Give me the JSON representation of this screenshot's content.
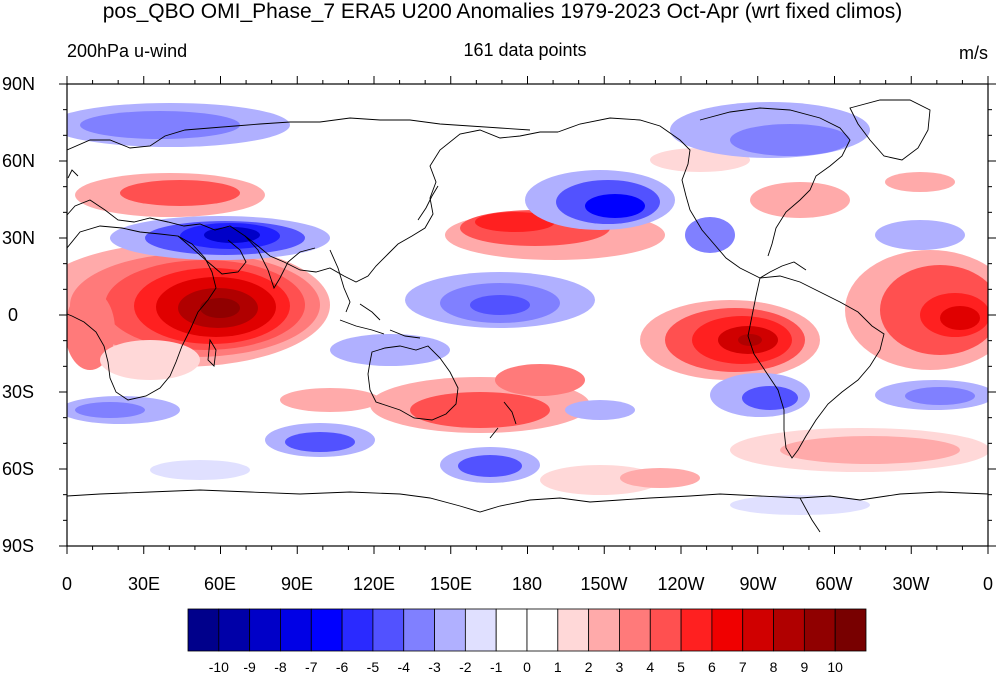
{
  "title": "pos_QBO OMI_Phase_7 ERA5 U200 Anomalies 1979-2023 Oct-Apr (wrt fixed climos)",
  "left_string": "200hPa u-wind",
  "center_string": "161 data points",
  "right_string": "m/s",
  "y_ticks": [
    "90N",
    "60N",
    "30N",
    "0",
    "30S",
    "60S",
    "90S"
  ],
  "x_ticks": [
    "0",
    "30E",
    "60E",
    "90E",
    "120E",
    "150E",
    "180",
    "150W",
    "120W",
    "90W",
    "60W",
    "30W",
    "0"
  ],
  "colorbar": {
    "labels": [
      "-10",
      "-9",
      "-8",
      "-7",
      "-6",
      "-5",
      "-4",
      "-3",
      "-2",
      "-1",
      "0",
      "1",
      "2",
      "3",
      "4",
      "5",
      "6",
      "7",
      "8",
      "9",
      "10"
    ],
    "colors": [
      "#00008b",
      "#0000a8",
      "#0000c8",
      "#0000e6",
      "#0000ff",
      "#2a2aff",
      "#5252ff",
      "#8080ff",
      "#b0b0ff",
      "#e0e0ff",
      "#ffffff",
      "#ffffff",
      "#ffd8d8",
      "#ffaaaa",
      "#ff7a7a",
      "#ff5050",
      "#ff2020",
      "#f00000",
      "#d00000",
      "#b00000",
      "#900000",
      "#780000"
    ]
  },
  "anomaly_centers": [
    {
      "lon": 60,
      "lat": 3,
      "value": 10
    },
    {
      "lon": 270,
      "lat": -10,
      "value": 8
    },
    {
      "lon": 340,
      "lat": 0,
      "value": 6
    },
    {
      "lon": 165,
      "lat": 35,
      "value": 6
    },
    {
      "lon": 60,
      "lat": 30,
      "value": -7
    },
    {
      "lon": 210,
      "lat": 43,
      "value": -6
    },
    {
      "lon": 170,
      "lat": 3,
      "value": -5
    },
    {
      "lon": 155,
      "lat": -55,
      "value": -5
    },
    {
      "lon": 95,
      "lat": -50,
      "value": -5
    },
    {
      "lon": 275,
      "lat": -33,
      "value": -5
    }
  ]
}
